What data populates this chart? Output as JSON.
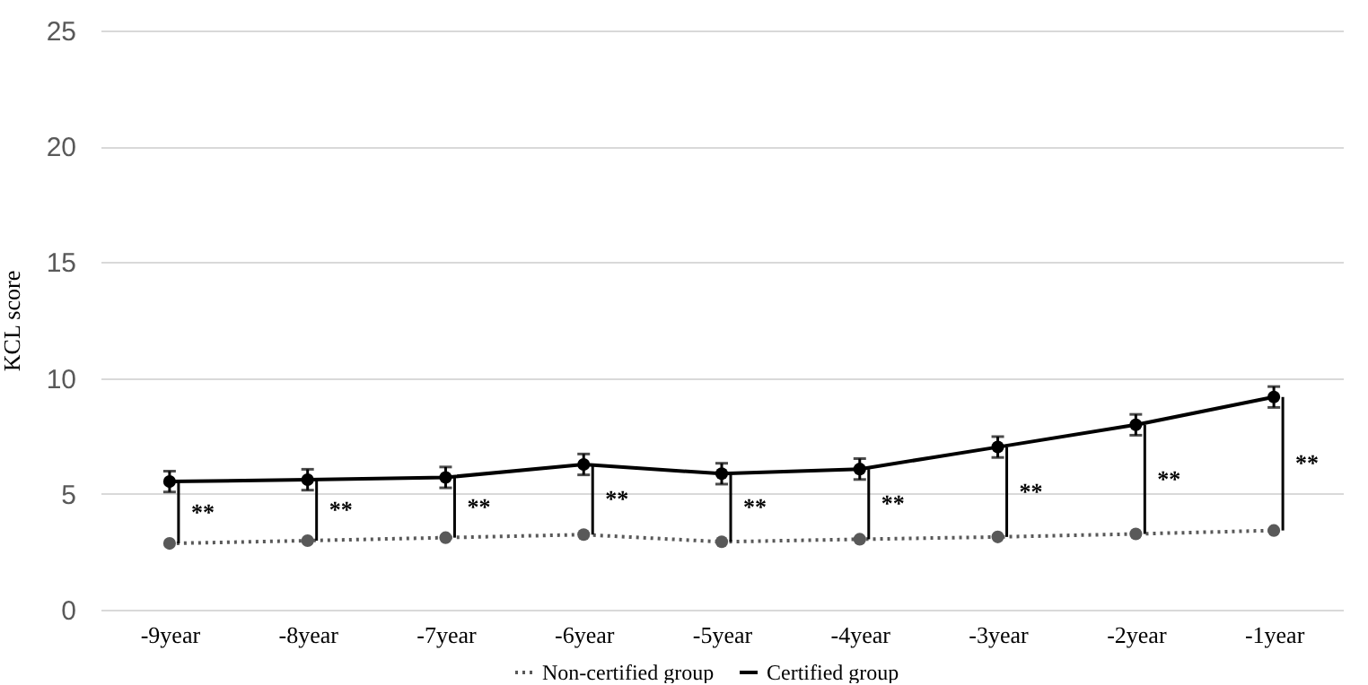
{
  "chart_data": {
    "type": "line",
    "ylabel": "KCL score",
    "categories": [
      "-9year",
      "-8year",
      "-7year",
      "-6year",
      "-5year",
      "-4year",
      "-3year",
      "-2year",
      "-1year"
    ],
    "series": [
      {
        "name": "Non-certified group",
        "color": "#595959",
        "line_style": "dotted",
        "values": [
          2.86,
          2.98,
          3.11,
          3.24,
          2.93,
          3.04,
          3.14,
          3.27,
          3.42
        ]
      },
      {
        "name": "Certified group",
        "color": "#000000",
        "line_style": "solid",
        "values": [
          5.53,
          5.61,
          5.71,
          6.27,
          5.87,
          6.07,
          7.02,
          7.98,
          9.18
        ],
        "errors": [
          0.45,
          0.45,
          0.45,
          0.45,
          0.45,
          0.45,
          0.45,
          0.45,
          0.45
        ]
      }
    ],
    "annotations": [
      "**",
      "**",
      "**",
      "**",
      "**",
      "**",
      "**",
      "**",
      "**"
    ],
    "ylim": [
      0,
      25
    ],
    "yticks": [
      0,
      5,
      10,
      15,
      20,
      25
    ],
    "grid": "y",
    "legend": "bottom",
    "marker": "circle"
  }
}
